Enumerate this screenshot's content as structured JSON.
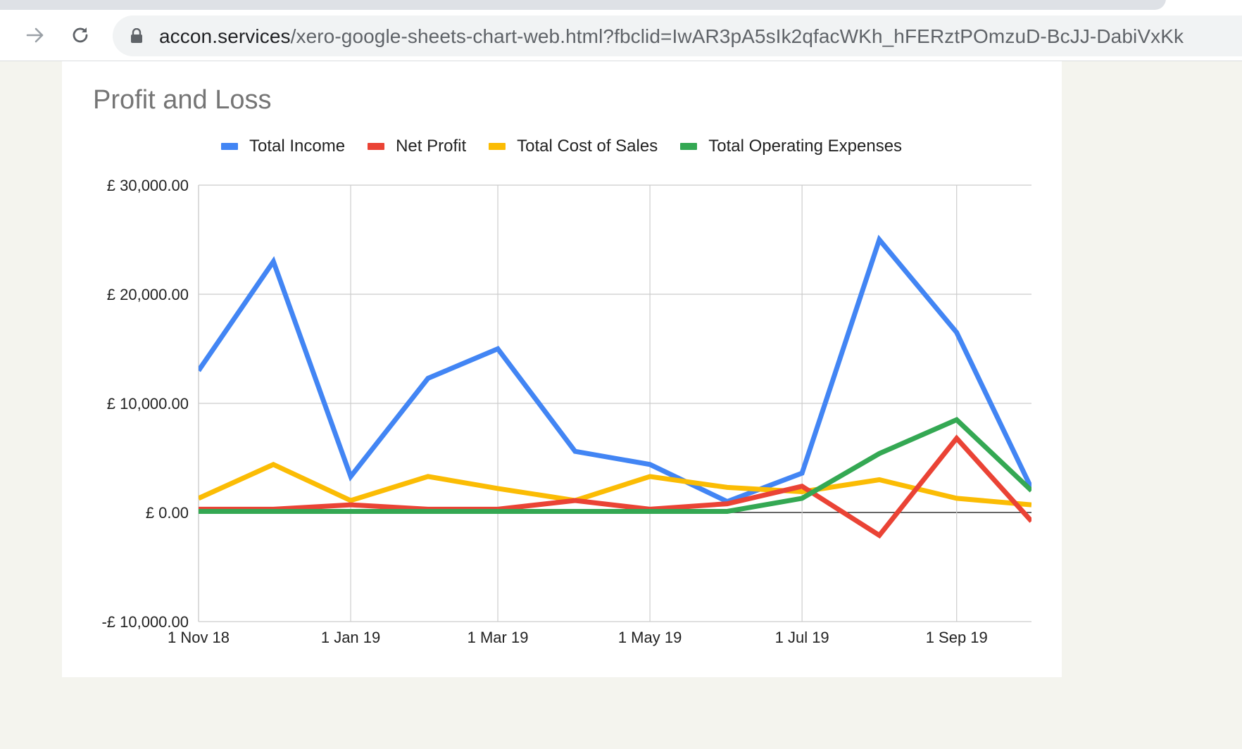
{
  "browser": {
    "url_domain": "accon.services",
    "url_path": "/xero-google-sheets-chart-web.html?fbclid=IwAR3pA5sIk2qfacWKh_hFERztPOmzuD-BcJJ-DabiVxKk"
  },
  "chart_data": {
    "type": "line",
    "title": "Profit and Loss",
    "xlabel": "",
    "ylabel": "",
    "legend_position": "top",
    "grid": true,
    "x": [
      "2018-11-01",
      "2018-12-01",
      "2019-01-01",
      "2019-02-01",
      "2019-03-01",
      "2019-04-01",
      "2019-05-01",
      "2019-06-01",
      "2019-07-01",
      "2019-08-01",
      "2019-09-01",
      "2019-10-01"
    ],
    "x_tick_labels": [
      "1 Nov 18",
      "1 Jan 19",
      "1 Mar 19",
      "1 May 19",
      "1 Jul 19",
      "1 Sep 19"
    ],
    "x_tick_dates": [
      "2018-11-01",
      "2019-01-01",
      "2019-03-01",
      "2019-05-01",
      "2019-07-01",
      "2019-09-01"
    ],
    "y_ticks": [
      -10000,
      0,
      10000,
      20000,
      30000
    ],
    "y_tick_labels": [
      "-£ 10,000.00",
      "£ 0.00",
      "£ 10,000.00",
      "£ 20,000.00",
      "£ 30,000.00"
    ],
    "ylim": [
      -10000,
      30000
    ],
    "series": [
      {
        "name": "Total Income",
        "color": "#4285f4",
        "values": [
          13000,
          23000,
          3300,
          12300,
          15000,
          5600,
          4400,
          1000,
          3600,
          25000,
          16500,
          2200
        ]
      },
      {
        "name": "Net Profit",
        "color": "#ea4335",
        "values": [
          300,
          300,
          700,
          300,
          300,
          1100,
          300,
          800,
          2400,
          -2100,
          6800,
          -800
        ]
      },
      {
        "name": "Total Cost of Sales",
        "color": "#fbbc04",
        "values": [
          1300,
          4400,
          1100,
          3300,
          2200,
          1100,
          3300,
          2300,
          1900,
          3000,
          1300,
          700
        ]
      },
      {
        "name": "Total Operating Expenses",
        "color": "#34a853",
        "values": [
          100,
          100,
          100,
          100,
          100,
          100,
          100,
          100,
          1300,
          5400,
          8500,
          2000
        ]
      }
    ]
  }
}
